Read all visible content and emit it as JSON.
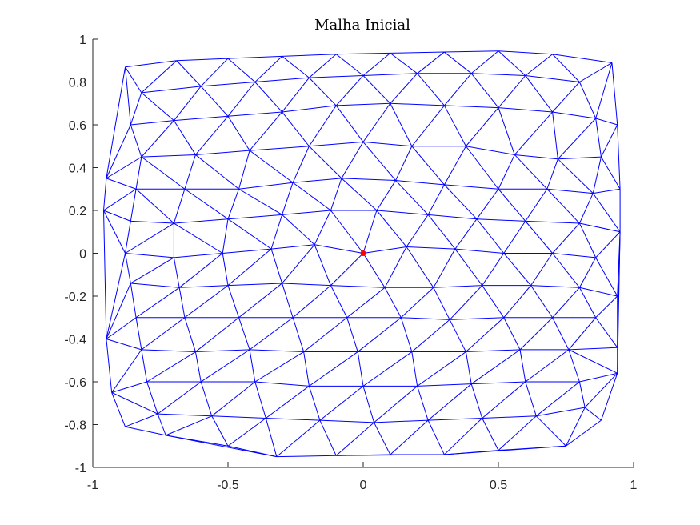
{
  "chart_data": {
    "type": "triangulated-mesh",
    "title": "Malha Inicial",
    "xlabel": "",
    "ylabel": "",
    "xlim": [
      -1,
      1
    ],
    "ylim": [
      -1,
      1
    ],
    "x_ticks": [
      -1,
      -0.5,
      0,
      0.5,
      1
    ],
    "x_tick_labels": [
      "-1",
      "-0.5",
      "0",
      "0.5",
      "1"
    ],
    "y_ticks": [
      -1,
      -0.8,
      -0.6,
      -0.4,
      -0.2,
      0,
      0.2,
      0.4,
      0.6,
      0.8,
      1
    ],
    "y_tick_labels": [
      "-1",
      "-0.8",
      "-0.6",
      "-0.4",
      "-0.2",
      "0",
      "0.2",
      "0.4",
      "0.6",
      "0.8",
      "1"
    ],
    "grid": false,
    "mesh_color": "#0000ff",
    "marker_color": "#ff0000",
    "marked_point": [
      0,
      0
    ],
    "mesh_nodes": [
      [
        -0.88,
        0.87
      ],
      [
        -0.69,
        0.9
      ],
      [
        -0.5,
        0.91
      ],
      [
        -0.3,
        0.92
      ],
      [
        -0.1,
        0.93
      ],
      [
        0.1,
        0.935
      ],
      [
        0.3,
        0.94
      ],
      [
        0.5,
        0.945
      ],
      [
        0.7,
        0.93
      ],
      [
        0.92,
        0.89
      ],
      [
        -0.95,
        0.35
      ],
      [
        -0.96,
        0.2
      ],
      [
        -0.95,
        -0.4
      ],
      [
        -0.93,
        -0.65
      ],
      [
        -0.88,
        -0.81
      ],
      [
        -0.73,
        -0.85
      ],
      [
        -0.5,
        -0.9
      ],
      [
        -0.32,
        -0.95
      ],
      [
        -0.1,
        -0.945
      ],
      [
        0.1,
        -0.94
      ],
      [
        0.3,
        -0.94
      ],
      [
        0.5,
        -0.92
      ],
      [
        0.75,
        -0.9
      ],
      [
        0.88,
        -0.78
      ],
      [
        0.94,
        -0.56
      ],
      [
        0.94,
        -0.44
      ],
      [
        0.94,
        -0.2
      ],
      [
        0.95,
        0.1
      ],
      [
        0.95,
        0.3
      ],
      [
        0.94,
        0.6
      ],
      [
        -0.82,
        0.75
      ],
      [
        -0.6,
        0.78
      ],
      [
        -0.4,
        0.8
      ],
      [
        -0.2,
        0.82
      ],
      [
        0.0,
        0.83
      ],
      [
        0.2,
        0.84
      ],
      [
        0.4,
        0.84
      ],
      [
        0.6,
        0.83
      ],
      [
        0.8,
        0.8
      ],
      [
        -0.86,
        0.6
      ],
      [
        -0.7,
        0.62
      ],
      [
        -0.5,
        0.64
      ],
      [
        -0.3,
        0.66
      ],
      [
        -0.1,
        0.69
      ],
      [
        0.1,
        0.7
      ],
      [
        0.3,
        0.69
      ],
      [
        0.5,
        0.68
      ],
      [
        0.7,
        0.66
      ],
      [
        0.86,
        0.63
      ],
      [
        -0.82,
        0.45
      ],
      [
        -0.62,
        0.46
      ],
      [
        -0.42,
        0.48
      ],
      [
        -0.2,
        0.5
      ],
      [
        0.0,
        0.52
      ],
      [
        0.18,
        0.5
      ],
      [
        0.38,
        0.5
      ],
      [
        0.56,
        0.46
      ],
      [
        0.72,
        0.44
      ],
      [
        0.88,
        0.45
      ],
      [
        -0.84,
        0.3
      ],
      [
        -0.66,
        0.3
      ],
      [
        -0.46,
        0.3
      ],
      [
        -0.26,
        0.33
      ],
      [
        -0.08,
        0.35
      ],
      [
        0.12,
        0.34
      ],
      [
        0.3,
        0.32
      ],
      [
        0.5,
        0.3
      ],
      [
        0.68,
        0.3
      ],
      [
        0.85,
        0.28
      ],
      [
        -0.86,
        0.15
      ],
      [
        -0.7,
        0.14
      ],
      [
        -0.5,
        0.16
      ],
      [
        -0.3,
        0.18
      ],
      [
        -0.12,
        0.2
      ],
      [
        0.05,
        0.2
      ],
      [
        0.24,
        0.18
      ],
      [
        0.42,
        0.16
      ],
      [
        0.6,
        0.15
      ],
      [
        0.8,
        0.14
      ],
      [
        -0.88,
        0.0
      ],
      [
        -0.7,
        -0.02
      ],
      [
        -0.52,
        0.0
      ],
      [
        -0.34,
        0.02
      ],
      [
        -0.18,
        0.04
      ],
      [
        0.0,
        0.0
      ],
      [
        0.16,
        0.03
      ],
      [
        0.34,
        0.02
      ],
      [
        0.52,
        0.0
      ],
      [
        0.7,
        0.0
      ],
      [
        0.86,
        -0.02
      ],
      [
        -0.86,
        -0.14
      ],
      [
        -0.68,
        -0.16
      ],
      [
        -0.5,
        -0.15
      ],
      [
        -0.3,
        -0.14
      ],
      [
        -0.12,
        -0.15
      ],
      [
        0.08,
        -0.16
      ],
      [
        0.26,
        -0.16
      ],
      [
        0.44,
        -0.15
      ],
      [
        0.62,
        -0.15
      ],
      [
        0.8,
        -0.16
      ],
      [
        -0.84,
        -0.3
      ],
      [
        -0.66,
        -0.3
      ],
      [
        -0.46,
        -0.3
      ],
      [
        -0.26,
        -0.3
      ],
      [
        -0.06,
        -0.3
      ],
      [
        0.14,
        -0.3
      ],
      [
        0.32,
        -0.31
      ],
      [
        0.52,
        -0.3
      ],
      [
        0.7,
        -0.3
      ],
      [
        0.86,
        -0.3
      ],
      [
        -0.82,
        -0.45
      ],
      [
        -0.62,
        -0.46
      ],
      [
        -0.42,
        -0.45
      ],
      [
        -0.22,
        -0.46
      ],
      [
        -0.02,
        -0.46
      ],
      [
        0.18,
        -0.46
      ],
      [
        0.38,
        -0.46
      ],
      [
        0.58,
        -0.45
      ],
      [
        0.76,
        -0.45
      ],
      [
        -0.8,
        -0.6
      ],
      [
        -0.6,
        -0.6
      ],
      [
        -0.4,
        -0.6
      ],
      [
        -0.2,
        -0.62
      ],
      [
        0.0,
        -0.62
      ],
      [
        0.2,
        -0.62
      ],
      [
        0.4,
        -0.61
      ],
      [
        0.6,
        -0.6
      ],
      [
        0.8,
        -0.6
      ],
      [
        -0.76,
        -0.75
      ],
      [
        -0.56,
        -0.76
      ],
      [
        -0.36,
        -0.77
      ],
      [
        -0.16,
        -0.78
      ],
      [
        0.04,
        -0.79
      ],
      [
        0.24,
        -0.78
      ],
      [
        0.44,
        -0.77
      ],
      [
        0.64,
        -0.76
      ],
      [
        0.82,
        -0.72
      ]
    ]
  }
}
